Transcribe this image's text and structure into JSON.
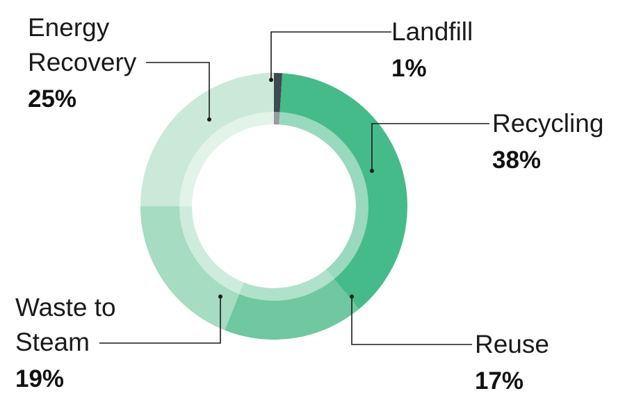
{
  "chart_data": {
    "type": "donut",
    "title": "",
    "slices": [
      {
        "label": "Landfill",
        "label_lines": [
          "Landfill"
        ],
        "value": 1,
        "value_label": "1%",
        "color": "#3e4a50"
      },
      {
        "label": "Recycling",
        "label_lines": [
          "Recycling"
        ],
        "value": 38,
        "value_label": "38%",
        "color": "#45bb8a"
      },
      {
        "label": "Reuse",
        "label_lines": [
          "Reuse"
        ],
        "value": 17,
        "value_label": "17%",
        "color": "#6fc89f"
      },
      {
        "label": "Waste to Steam",
        "label_lines": [
          "Waste to",
          "Steam"
        ],
        "value": 19,
        "value_label": "19%",
        "color": "#a6dcc1"
      },
      {
        "label": "Energy Recovery",
        "label_lines": [
          "Energy",
          "Recovery"
        ],
        "value": 25,
        "value_label": "25%",
        "color": "#cae9d9"
      }
    ],
    "legend": "none"
  }
}
